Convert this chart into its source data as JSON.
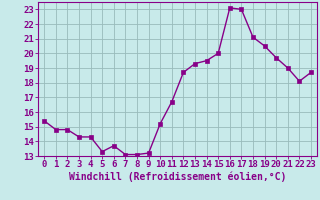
{
  "x": [
    0,
    1,
    2,
    3,
    4,
    5,
    6,
    7,
    8,
    9,
    10,
    11,
    12,
    13,
    14,
    15,
    16,
    17,
    18,
    19,
    20,
    21,
    22,
    23
  ],
  "y": [
    15.4,
    14.8,
    14.8,
    14.3,
    14.3,
    13.3,
    13.7,
    13.1,
    13.1,
    13.2,
    15.2,
    16.7,
    18.7,
    19.3,
    19.5,
    20.0,
    23.1,
    23.0,
    21.1,
    20.5,
    19.7,
    19.0,
    18.1,
    18.7
  ],
  "line_color": "#880088",
  "marker": "s",
  "marker_size": 2.5,
  "bg_color": "#c8eaea",
  "plot_bg_color": "#c8eaea",
  "grid_color": "#99bbbb",
  "xlabel": "Windchill (Refroidissement éolien,°C)",
  "ylabel_ticks": [
    13,
    14,
    15,
    16,
    17,
    18,
    19,
    20,
    21,
    22,
    23
  ],
  "xlim": [
    -0.5,
    23.5
  ],
  "ylim": [
    13,
    23.5
  ],
  "xlabel_fontsize": 7.0,
  "tick_fontsize": 6.5,
  "line_width": 1.0
}
